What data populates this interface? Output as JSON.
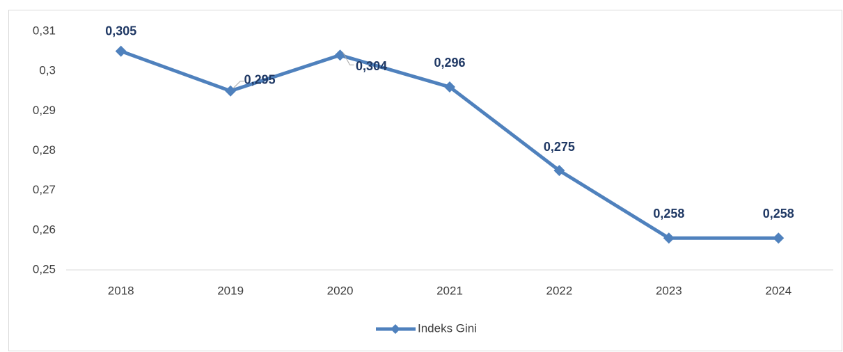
{
  "chart_data": {
    "type": "line",
    "categories": [
      "2018",
      "2019",
      "2020",
      "2021",
      "2022",
      "2023",
      "2024"
    ],
    "series": [
      {
        "name": "Indeks Gini",
        "color": "#4f81bd",
        "values": [
          0.305,
          0.295,
          0.304,
          0.296,
          0.275,
          0.258,
          0.258
        ],
        "value_labels": [
          "0,305",
          "0,295",
          "0,304",
          "0,296",
          "0,275",
          "0,258",
          "0,258"
        ]
      }
    ],
    "ylim": [
      0.25,
      0.31
    ],
    "yticks": [
      {
        "value": 0.25,
        "label": "0,25"
      },
      {
        "value": 0.26,
        "label": "0,26"
      },
      {
        "value": 0.27,
        "label": "0,27"
      },
      {
        "value": 0.28,
        "label": "0,28"
      },
      {
        "value": 0.29,
        "label": "0,29"
      },
      {
        "value": 0.3,
        "label": "0,3"
      },
      {
        "value": 0.31,
        "label": "0,31"
      }
    ],
    "grid": false,
    "legend": "bottom"
  }
}
